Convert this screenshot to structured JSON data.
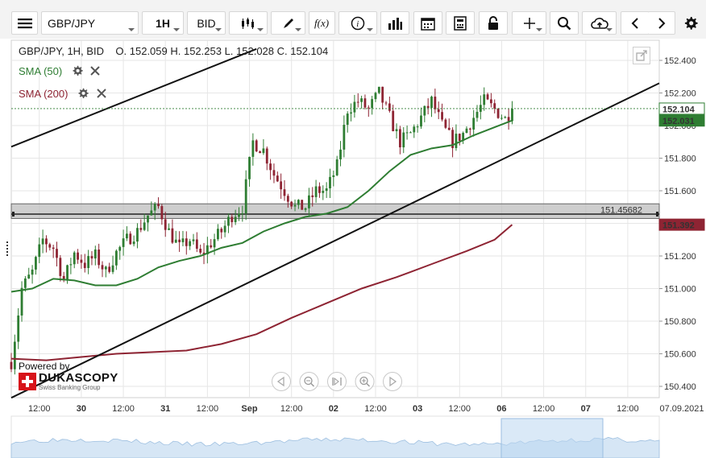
{
  "toolbar": {
    "symbol": "GBP/JPY",
    "timeframe": "1H",
    "price_type": "BID",
    "icons": [
      "menu-icon",
      "candles-icon",
      "draw-icon",
      "function-icon",
      "info-icon",
      "bar-chart-icon",
      "calendar-icon",
      "calculator-icon",
      "lock-icon",
      "crosshair-icon",
      "zoom-icon",
      "cloud-upload-icon",
      "chevron-left-icon",
      "chevron-right-icon",
      "gear-icon"
    ]
  },
  "header": {
    "title": "GBP/JPY, 1H, BID",
    "ohlc": "O. 152.059 H. 152.253 L. 152.028 C. 152.104"
  },
  "indicators": [
    {
      "label": "SMA (50)",
      "color": "#2e7d32"
    },
    {
      "label": "SMA (200)",
      "color": "#8e2433"
    }
  ],
  "branding": {
    "powered_by": "Powered by",
    "name": "DUKASCOPY",
    "tagline": "Swiss Banking Group"
  },
  "chart_data": {
    "type": "candlestick",
    "ylim": [
      150.3,
      152.5
    ],
    "y_ticks": [
      "152.400",
      "152.200",
      "152.000",
      "151.800",
      "151.600",
      "151.400",
      "151.200",
      "151.000",
      "150.800",
      "150.600",
      "150.400"
    ],
    "x_ticks": [
      {
        "label": "12:00",
        "bold": false,
        "h": -12
      },
      {
        "label": "30",
        "bold": true,
        "h": 0
      },
      {
        "label": "12:00",
        "bold": false,
        "h": 12
      },
      {
        "label": "31",
        "bold": true,
        "h": 24
      },
      {
        "label": "12:00",
        "bold": false,
        "h": 36
      },
      {
        "label": "Sep",
        "bold": true,
        "h": 48
      },
      {
        "label": "12:00",
        "bold": false,
        "h": 60
      },
      {
        "label": "02",
        "bold": true,
        "h": 72
      },
      {
        "label": "12:00",
        "bold": false,
        "h": 84
      },
      {
        "label": "03",
        "bold": true,
        "h": 96
      },
      {
        "label": "12:00",
        "bold": false,
        "h": 108
      },
      {
        "label": "06",
        "bold": true,
        "h": 120
      },
      {
        "label": "12:00",
        "bold": false,
        "h": 132
      },
      {
        "label": "07",
        "bold": true,
        "h": 144
      },
      {
        "label": "12:00",
        "bold": false,
        "h": 156
      }
    ],
    "date_label": "07.09.2021",
    "x_range_hours": [
      -20,
      165
    ],
    "last_price": "152.104",
    "last_price_value": 152.104,
    "sma50_value_label": "152.031",
    "sma50_value": 152.031,
    "sma200_value_label": "151.392",
    "sma200_value": 151.392,
    "horizontal_level_label": "151.45682",
    "horizontal_level": 151.45682,
    "zone": [
      151.43,
      151.52
    ],
    "trendlines": [
      {
        "h0": -20,
        "v0": 151.87,
        "h1": 50,
        "v1": 152.47
      },
      {
        "h0": -20,
        "v0": 150.33,
        "h1": 165,
        "v1": 152.26
      }
    ],
    "candle_anchors": [
      [
        -20,
        150.55
      ],
      [
        -17,
        151.0
      ],
      [
        -14,
        151.1
      ],
      [
        -11,
        151.3
      ],
      [
        -8,
        151.25
      ],
      [
        -5,
        151.05
      ],
      [
        -2,
        151.22
      ],
      [
        1,
        151.15
      ],
      [
        4,
        151.2
      ],
      [
        7,
        151.1
      ],
      [
        10,
        151.22
      ],
      [
        13,
        151.3
      ],
      [
        16,
        151.35
      ],
      [
        19,
        151.45
      ],
      [
        22,
        151.5
      ],
      [
        25,
        151.35
      ],
      [
        28,
        151.25
      ],
      [
        31,
        151.3
      ],
      [
        34,
        151.2
      ],
      [
        37,
        151.28
      ],
      [
        40,
        151.35
      ],
      [
        43,
        151.45
      ],
      [
        46,
        151.5
      ],
      [
        49,
        151.9
      ],
      [
        52,
        151.85
      ],
      [
        55,
        151.7
      ],
      [
        58,
        151.6
      ],
      [
        61,
        151.5
      ],
      [
        64,
        151.5
      ],
      [
        67,
        151.6
      ],
      [
        70,
        151.6
      ],
      [
        73,
        151.75
      ],
      [
        76,
        152.1
      ],
      [
        79,
        152.15
      ],
      [
        82,
        152.1
      ],
      [
        85,
        152.2
      ],
      [
        88,
        152.05
      ],
      [
        91,
        151.9
      ],
      [
        94,
        151.95
      ],
      [
        97,
        152.05
      ],
      [
        100,
        152.15
      ],
      [
        103,
        152.0
      ],
      [
        106,
        151.9
      ],
      [
        109,
        151.95
      ],
      [
        112,
        152.05
      ],
      [
        115,
        152.15
      ],
      [
        118,
        152.1
      ],
      [
        121,
        152.04
      ],
      [
        123,
        152.104
      ]
    ],
    "sma50": [
      [
        -20,
        150.98
      ],
      [
        -14,
        151.0
      ],
      [
        -8,
        151.06
      ],
      [
        -2,
        151.05
      ],
      [
        4,
        151.02
      ],
      [
        10,
        151.02
      ],
      [
        16,
        151.06
      ],
      [
        22,
        151.13
      ],
      [
        28,
        151.17
      ],
      [
        34,
        151.2
      ],
      [
        40,
        151.25
      ],
      [
        46,
        151.28
      ],
      [
        52,
        151.35
      ],
      [
        58,
        151.4
      ],
      [
        64,
        151.44
      ],
      [
        70,
        151.46
      ],
      [
        76,
        151.5
      ],
      [
        82,
        151.6
      ],
      [
        88,
        151.72
      ],
      [
        94,
        151.82
      ],
      [
        100,
        151.86
      ],
      [
        106,
        151.88
      ],
      [
        112,
        151.94
      ],
      [
        118,
        151.99
      ],
      [
        123,
        152.031
      ]
    ],
    "sma200": [
      [
        -20,
        150.57
      ],
      [
        -10,
        150.56
      ],
      [
        0,
        150.58
      ],
      [
        10,
        150.6
      ],
      [
        20,
        150.61
      ],
      [
        30,
        150.62
      ],
      [
        40,
        150.66
      ],
      [
        50,
        150.72
      ],
      [
        60,
        150.82
      ],
      [
        70,
        150.91
      ],
      [
        80,
        151.0
      ],
      [
        90,
        151.07
      ],
      [
        100,
        151.15
      ],
      [
        110,
        151.23
      ],
      [
        118,
        151.3
      ],
      [
        123,
        151.392
      ]
    ]
  },
  "colors": {
    "bull": "#2e7d32",
    "bear": "#8e2433",
    "price_tag": "#2e7d32",
    "sma200_tag": "#8e2433",
    "grid": "#e6e6e6"
  }
}
